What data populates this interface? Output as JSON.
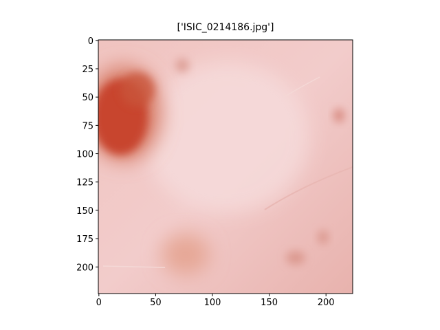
{
  "chart_data": {
    "type": "image",
    "title": "['ISIC_0214186.jpg']",
    "xlim": [
      -0.5,
      223.5
    ],
    "ylim": [
      223.5,
      -0.5
    ],
    "xticks": [
      0,
      50,
      100,
      150,
      200
    ],
    "yticks": [
      0,
      25,
      50,
      75,
      100,
      125,
      150,
      175,
      200
    ]
  }
}
